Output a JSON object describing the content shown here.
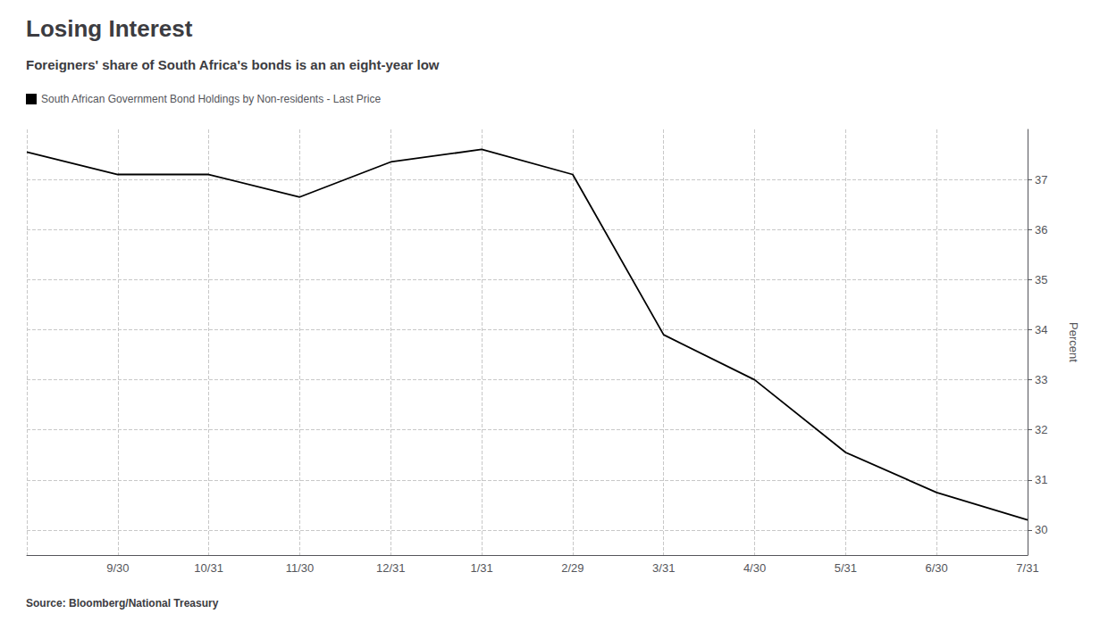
{
  "chart_data": {
    "type": "line",
    "title": "Losing Interest",
    "subtitle": "Foreigners' share of South Africa's bonds is an an eight-year low",
    "source": "Source: Bloomberg/National Treasury",
    "ylabel": "Percent",
    "categories": [
      null,
      "9/30",
      "10/31",
      "11/30",
      "12/31",
      "1/31",
      "2/29",
      "3/31",
      "4/30",
      "5/31",
      "6/30",
      "7/31"
    ],
    "series": [
      {
        "name": "South African Government Bond Holdings by Non-residents - Last Price",
        "color": "#000000",
        "values": [
          37.55,
          37.1,
          37.1,
          36.65,
          37.35,
          37.6,
          37.1,
          33.9,
          33.0,
          31.55,
          30.75,
          30.2
        ]
      }
    ],
    "ylim": [
      29.5,
      38.0
    ],
    "yticks": [
      30,
      31,
      32,
      33,
      34,
      35,
      36,
      37
    ],
    "grid": true,
    "legend": "upper left"
  }
}
